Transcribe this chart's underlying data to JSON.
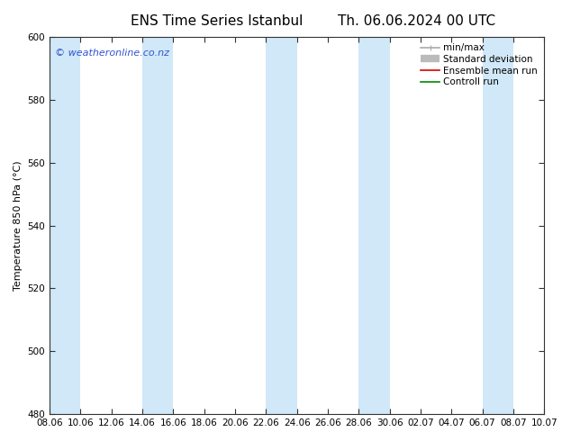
{
  "title_left": "ENS Time Series Istanbul",
  "title_right": "Th. 06.06.2024 00 UTC",
  "ylabel": "Temperature 850 hPa (°C)",
  "ylim": [
    480,
    600
  ],
  "yticks": [
    480,
    500,
    520,
    540,
    560,
    580,
    600
  ],
  "xtick_labels": [
    "08.06",
    "10.06",
    "12.06",
    "14.06",
    "16.06",
    "18.06",
    "20.06",
    "22.06",
    "24.06",
    "26.06",
    "28.06",
    "30.06",
    "02.07",
    "04.07",
    "06.07",
    "08.07",
    "10.07"
  ],
  "watermark": "© weatheronline.co.nz",
  "watermark_color": "#3355cc",
  "band_color": "#d0e8f8",
  "band_indices": [
    0,
    3,
    7,
    10,
    14
  ],
  "legend_items": [
    {
      "label": "min/max",
      "color": "#aaaaaa",
      "lw": 1.2
    },
    {
      "label": "Standard deviation",
      "color": "#bbbbbb",
      "lw": 6
    },
    {
      "label": "Ensemble mean run",
      "color": "#dd0000",
      "lw": 1.2
    },
    {
      "label": "Controll run",
      "color": "#008800",
      "lw": 1.2
    }
  ],
  "title_fontsize": 11,
  "tick_fontsize": 7.5,
  "ylabel_fontsize": 8,
  "watermark_fontsize": 8,
  "legend_fontsize": 7.5
}
